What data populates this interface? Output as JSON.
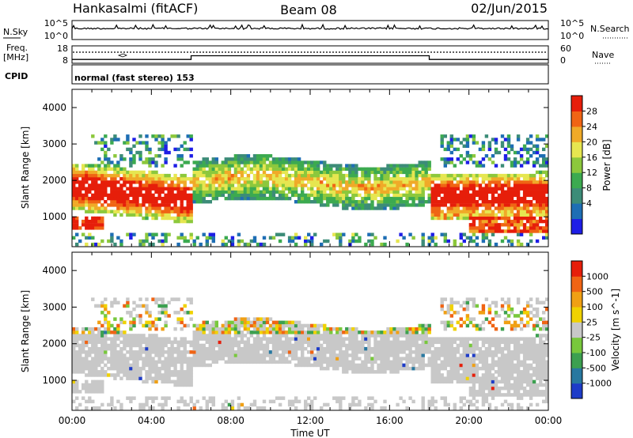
{
  "header": {
    "station": "Hankasalmi (fitACF)",
    "beam": "Beam 08",
    "date": "02/Jun/2015"
  },
  "top_panels": {
    "nsky_label": "N.Sky",
    "nsky_ticks": [
      "10^5",
      "10^0"
    ],
    "nsearch_label": "N.Search",
    "nsearch_ticks": [
      "10^5",
      "10^0"
    ],
    "freq_label_1": "Freq.",
    "freq_label_2": "[MHz]",
    "freq_ticks": [
      "18",
      "8"
    ],
    "nave_label": "Nave",
    "nave_ticks": [
      "60",
      "0"
    ],
    "cpid_label": "CPID",
    "cpid_text": "normal (fast stereo) 153"
  },
  "chart_data": [
    {
      "type": "heatmap",
      "name": "power",
      "ylabel": "Slant Range [km]",
      "xlabel": "Time UT",
      "ylim": [
        180,
        4500
      ],
      "yticks": [
        "1000",
        "2000",
        "3000",
        "4000"
      ],
      "colorbar_label": "Power [dB]",
      "colorbar_ticks": [
        "28",
        "24",
        "20",
        "16",
        "12",
        "8",
        "4"
      ],
      "colors": [
        "#1e1ee6",
        "#1e6eb4",
        "#3c8c78",
        "#3caa50",
        "#8cc83c",
        "#e6e650",
        "#f0aa28",
        "#f06414",
        "#e61e0a"
      ],
      "description_bands": [
        {
          "t_start": 0,
          "t_end": 6,
          "range_center": 1700,
          "value": 24
        },
        {
          "t_start": 6,
          "t_end": 18,
          "range_center": 1900,
          "value": 10
        },
        {
          "t_start": 18,
          "t_end": 24,
          "range_center": 1550,
          "value": 26
        }
      ]
    },
    {
      "type": "heatmap",
      "name": "velocity",
      "ylabel": "Slant Range [km]",
      "xlabel": "Time UT",
      "ylim": [
        180,
        4500
      ],
      "yticks": [
        "1000",
        "2000",
        "3000",
        "4000"
      ],
      "colorbar_label": "Velocity [m s^-1]",
      "colorbar_ticks": [
        "1000",
        "500",
        "100",
        "25",
        "-25",
        "-100",
        "-500",
        "-1000"
      ],
      "colors": [
        "#1e3cc8",
        "#2878a0",
        "#3ca050",
        "#78c83c",
        "#c8c8c8",
        "#f0d200",
        "#f0a014",
        "#f06414",
        "#e61e0a"
      ]
    }
  ],
  "time_axis": {
    "xlabel": "Time UT",
    "ticks": [
      "00:00",
      "04:00",
      "08:00",
      "12:00",
      "16:00",
      "20:00",
      "00:00"
    ]
  },
  "freq_data": {
    "t": [
      0,
      6,
      6,
      18,
      18,
      24
    ],
    "mhz": [
      10.2,
      10.2,
      12.3,
      12.3,
      10.2,
      10.2
    ]
  }
}
